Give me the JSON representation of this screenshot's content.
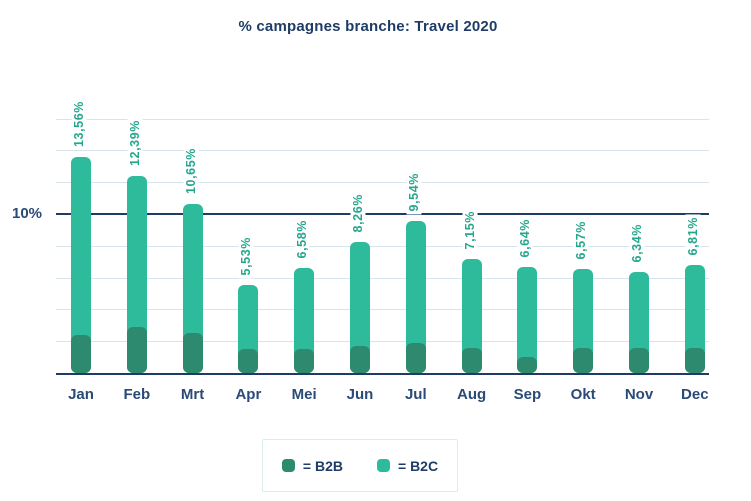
{
  "title": "% campagnes branche: Travel 2020",
  "chart_data": {
    "type": "bar",
    "stacked": true,
    "title": "% campagnes branche: Travel 2020",
    "categories": [
      "Jan",
      "Feb",
      "Mrt",
      "Apr",
      "Mei",
      "Jun",
      "Jul",
      "Aug",
      "Sep",
      "Okt",
      "Nov",
      "Dec"
    ],
    "series": [
      {
        "name": "B2B",
        "color": "#2e8a6f",
        "values": [
          2.4,
          2.9,
          2.5,
          1.5,
          1.5,
          1.7,
          1.9,
          1.6,
          1.0,
          1.6,
          1.6,
          1.6
        ]
      },
      {
        "name": "B2C",
        "color": "#2dbb9b",
        "values": [
          11.16,
          9.49,
          8.15,
          4.03,
          5.08,
          6.56,
          7.64,
          5.55,
          5.64,
          4.97,
          4.74,
          5.21
        ]
      }
    ],
    "totals": [
      13.56,
      12.39,
      10.65,
      5.53,
      6.58,
      8.26,
      9.54,
      7.15,
      6.64,
      6.57,
      6.34,
      6.81
    ],
    "total_labels": [
      "13,56%",
      "12,39%",
      "10,65%",
      "5,53%",
      "6,58%",
      "8,26%",
      "9,54%",
      "7,15%",
      "6,64%",
      "6,57%",
      "6,34%",
      "6,81%"
    ],
    "xlabel": "",
    "ylabel": "",
    "ylim": [
      0,
      16
    ],
    "gridline_step": 2,
    "grid": true,
    "y_axis": {
      "label": "10%",
      "emphasized_line_value": 10
    },
    "legend": {
      "position": "bottom",
      "items": [
        {
          "label": "= B2B",
          "color": "#2e8a6f"
        },
        {
          "label": "= B2C",
          "color": "#2dbb9b"
        }
      ]
    },
    "colors": {
      "title_text": "#1e3c66",
      "axis_line": "#1e3c66",
      "gridline": "#d7e4ec",
      "value_label_text": "#26a78c",
      "b2b": "#2e8a6f",
      "b2c": "#2dbb9b",
      "background": "#ffffff"
    }
  }
}
